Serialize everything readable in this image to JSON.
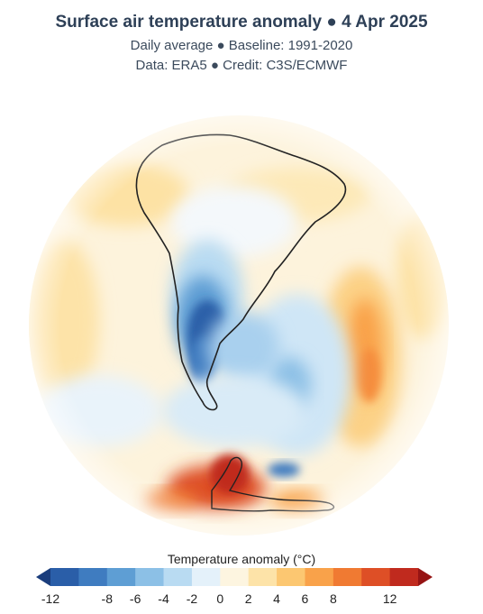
{
  "header": {
    "title": "Surface air temperature anomaly ● 4 Apr 2025",
    "subtitle_1": "Daily average ● Baseline: 1991-2020",
    "subtitle_2": "Data: ERA5 ● Credit: C3S/ECMWF"
  },
  "legend": {
    "title": "Temperature anomaly (°C)",
    "ticks": [
      "-12",
      "-10",
      "-8",
      "-6",
      "-4",
      "-2",
      "0",
      "2",
      "4",
      "6",
      "8",
      "10",
      "12"
    ],
    "visible_tick_labels": [
      "-12",
      "-8",
      "-6",
      "-4",
      "-2",
      "0",
      "2",
      "4",
      "6",
      "8",
      "12"
    ],
    "colors": [
      "#1a3d7c",
      "#2a5ea8",
      "#3f7cc0",
      "#5e9ed4",
      "#8cc0e6",
      "#b9dbf2",
      "#e4f1fa",
      "#fdf5e0",
      "#fde3a8",
      "#fcc771",
      "#f9a24a",
      "#f07a32",
      "#de4f26",
      "#c02a1e",
      "#961414"
    ]
  },
  "map": {
    "projection": "orthographic",
    "centered_on": "South America / South Atlantic",
    "anomaly_regions": [
      {
        "region": "Southern South America (Argentina/Patagonia)",
        "anomaly_c": -8
      },
      {
        "region": "South Atlantic west of Africa",
        "anomaly_c": 4
      },
      {
        "region": "Antarctic Peninsula / Weddell Sea",
        "anomaly_c": 10
      },
      {
        "region": "Brazil / northern continent",
        "anomaly_c": 1
      }
    ]
  }
}
